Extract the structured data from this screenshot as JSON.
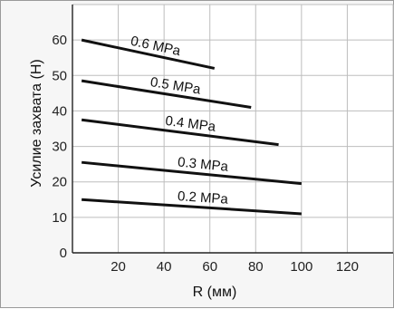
{
  "chart_data": {
    "type": "line",
    "xlabel": "R (мм)",
    "ylabel": "Усилие захвата (H)",
    "xlim": [
      0,
      140
    ],
    "ylim": [
      0,
      70
    ],
    "x_ticks": [
      "20",
      "40",
      "60",
      "80",
      "100",
      "120"
    ],
    "y_ticks": [
      "0",
      "10",
      "20",
      "30",
      "40",
      "50",
      "60"
    ],
    "grid": true,
    "colors": {
      "background": "#f6f6f6",
      "plot_area": "#ffffff",
      "grid": "#bdbdbd",
      "line": "#111111"
    },
    "series": [
      {
        "name": "0.6 MPa",
        "x": [
          4,
          62
        ],
        "y": [
          60,
          52
        ]
      },
      {
        "name": "0.5 MPa",
        "x": [
          4,
          78
        ],
        "y": [
          48.5,
          41
        ]
      },
      {
        "name": "0.4 MPa",
        "x": [
          4,
          90
        ],
        "y": [
          37.5,
          30.5
        ]
      },
      {
        "name": "0.3 MPa",
        "x": [
          4,
          100
        ],
        "y": [
          25.5,
          19.5
        ]
      },
      {
        "name": "0.2 MPa",
        "x": [
          4,
          100
        ],
        "y": [
          15,
          11
        ]
      }
    ]
  }
}
